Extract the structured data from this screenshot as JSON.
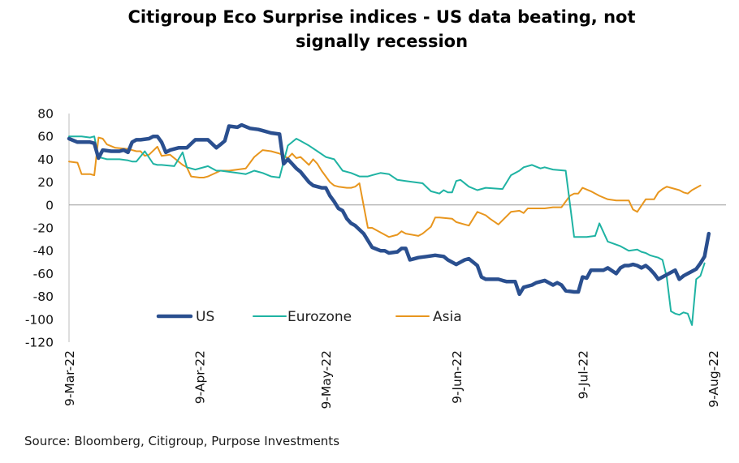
{
  "title_lines": [
    "Citigroup Eco Surprise indices - US data beating, not",
    "signally recession"
  ],
  "source": "Source: Bloomberg, Citigroup, Purpose Investments",
  "chart_data": {
    "type": "line",
    "title": "Citigroup Eco Surprise indices - US data beating, not signally recession",
    "xlabel": "",
    "ylabel": "",
    "ylim": [
      -120,
      80
    ],
    "yticks": [
      80,
      60,
      40,
      20,
      0,
      -20,
      -40,
      -60,
      -80,
      -100,
      -120
    ],
    "xlim": [
      0,
      153
    ],
    "xticks": [
      {
        "label": "9-Mar-22",
        "x": 0
      },
      {
        "label": "9-Apr-22",
        "x": 31
      },
      {
        "label": "9-May-22",
        "x": 61
      },
      {
        "label": "9-Jun-22",
        "x": 92
      },
      {
        "label": "9-Jul-22",
        "x": 122
      },
      {
        "label": "9-Aug-22",
        "x": 153
      }
    ],
    "legend": {
      "position": "bottom-left-inside"
    },
    "series": [
      {
        "name": "US",
        "color": "#2a4f8f",
        "width": 4.5,
        "x": [
          0,
          2,
          5,
          6,
          7,
          8,
          10,
          12,
          13,
          14,
          15,
          16,
          17,
          19,
          20,
          21,
          22,
          23,
          24,
          26,
          28,
          30,
          31,
          33,
          35,
          36,
          37,
          38,
          40,
          41,
          43,
          45,
          46,
          48,
          50,
          51,
          52,
          53,
          54,
          55,
          57,
          58,
          59,
          60,
          61,
          62,
          63,
          64,
          65,
          66,
          67,
          68,
          70,
          72,
          74,
          75,
          76,
          78,
          79,
          80,
          81,
          83,
          85,
          87,
          89,
          90,
          92,
          93,
          94,
          95,
          97,
          98,
          99,
          100,
          102,
          103,
          104,
          106,
          107,
          108,
          110,
          111,
          113,
          115,
          116,
          117,
          118,
          120,
          121,
          122,
          123,
          124,
          125,
          126,
          127,
          128,
          130,
          131,
          132,
          133,
          134,
          135,
          136,
          137,
          138,
          139,
          140,
          141,
          142,
          143,
          144,
          145,
          146,
          147,
          148,
          149,
          150,
          151,
          152
        ],
        "y": [
          58,
          55,
          55,
          54,
          41,
          48,
          47,
          47,
          48,
          46,
          55,
          57,
          57,
          58,
          60,
          60,
          55,
          46,
          48,
          50,
          50,
          57,
          57,
          57,
          50,
          53,
          56,
          69,
          68,
          70,
          67,
          66,
          65,
          63,
          62,
          36,
          40,
          36,
          32,
          29,
          20,
          17,
          16,
          15,
          15,
          8,
          3,
          -3,
          -5,
          -12,
          -16,
          -18,
          -25,
          -37,
          -40,
          -40,
          -42,
          -41,
          -38,
          -38,
          -48,
          -46,
          -45,
          -44,
          -45,
          -48,
          -52,
          -50,
          -48,
          -47,
          -53,
          -63,
          -65,
          -65,
          -65,
          -66,
          -67,
          -67,
          -78,
          -72,
          -70,
          -68,
          -66,
          -70,
          -68,
          -70,
          -75,
          -76,
          -76,
          -63,
          -64,
          -57,
          -57,
          -57,
          -57,
          -55,
          -60,
          -55,
          -53,
          -53,
          -52,
          -53,
          -55,
          -53,
          -56,
          -60,
          -65,
          -63,
          -61,
          -59,
          -57,
          -65,
          -62,
          -60,
          -58,
          -56,
          -51,
          -45,
          -25
        ]
      },
      {
        "name": "Eurozone",
        "color": "#1fb3a3",
        "width": 2,
        "x": [
          0,
          3,
          5,
          6,
          7,
          9,
          12,
          14,
          15,
          16,
          18,
          20,
          21,
          22,
          25,
          27,
          28,
          30,
          33,
          35,
          36,
          38,
          40,
          42,
          44,
          45,
          46,
          48,
          50,
          52,
          54,
          55,
          57,
          59,
          61,
          63,
          65,
          67,
          69,
          71,
          72,
          74,
          76,
          78,
          80,
          82,
          84,
          86,
          88,
          89,
          90,
          91,
          92,
          93,
          95,
          97,
          99,
          103,
          105,
          107,
          108,
          110,
          112,
          113,
          115,
          118,
          120,
          123,
          125,
          126,
          128,
          131,
          133,
          135,
          136,
          137,
          138,
          139,
          140,
          141,
          142,
          143,
          144,
          145,
          146,
          147,
          148,
          149,
          150,
          151
        ],
        "y": [
          60,
          60,
          59,
          60,
          42,
          40,
          40,
          39,
          38,
          38,
          47,
          36,
          35,
          35,
          34,
          46,
          33,
          31,
          34,
          30,
          30,
          29,
          28,
          27,
          30,
          29,
          28,
          25,
          24,
          52,
          58,
          56,
          52,
          47,
          42,
          40,
          30,
          28,
          25,
          25,
          26,
          28,
          27,
          22,
          21,
          20,
          19,
          12,
          10,
          13,
          11,
          11,
          21,
          22,
          16,
          13,
          15,
          14,
          26,
          30,
          33,
          35,
          32,
          33,
          31,
          30,
          -28,
          -28,
          -27,
          -16,
          -32,
          -36,
          -40,
          -39,
          -41,
          -42,
          -44,
          -45,
          -46,
          -48,
          -63,
          -93,
          -95,
          -96,
          -94,
          -95,
          -105,
          -65,
          -62,
          -51
        ]
      },
      {
        "name": "Asia",
        "color": "#e8961e",
        "width": 2,
        "x": [
          0,
          2,
          3,
          5,
          6,
          7,
          8,
          9,
          11,
          14,
          16,
          17,
          18,
          19,
          21,
          22,
          24,
          27,
          28,
          29,
          31,
          32,
          33,
          36,
          38,
          40,
          42,
          44,
          46,
          48,
          50,
          52,
          53,
          54,
          55,
          57,
          58,
          59,
          60,
          61,
          62,
          63,
          64,
          66,
          67,
          68,
          69,
          71,
          72,
          74,
          76,
          77,
          78,
          79,
          80,
          83,
          84,
          86,
          87,
          88,
          91,
          92,
          94,
          95,
          97,
          99,
          100,
          102,
          105,
          107,
          108,
          109,
          112,
          113,
          115,
          117,
          119,
          120,
          121,
          122,
          124,
          126,
          128,
          130,
          133,
          134,
          135,
          137,
          138,
          139,
          140,
          141,
          142,
          143,
          145,
          146,
          147,
          148,
          149,
          150
        ],
        "y": [
          38,
          37,
          27,
          27,
          26,
          59,
          58,
          53,
          50,
          49,
          47,
          47,
          43,
          44,
          51,
          43,
          44,
          35,
          33,
          25,
          24,
          24,
          25,
          30,
          30,
          31,
          32,
          42,
          48,
          47,
          45,
          41,
          45,
          41,
          42,
          35,
          40,
          36,
          30,
          25,
          20,
          17,
          16,
          15,
          15,
          16,
          19,
          -20,
          -20,
          -24,
          -28,
          -27,
          -26,
          -23,
          -25,
          -27,
          -25,
          -19,
          -11,
          -11,
          -12,
          -15,
          -17,
          -18,
          -6,
          -9,
          -12,
          -17,
          -6,
          -5,
          -7,
          -3,
          -3,
          -3,
          -2,
          -2,
          8,
          10,
          10,
          15,
          12,
          8,
          5,
          4,
          4,
          -4,
          -6,
          5,
          5,
          5,
          11,
          14,
          16,
          15,
          13,
          11,
          10,
          13,
          15,
          17
        ]
      }
    ]
  }
}
